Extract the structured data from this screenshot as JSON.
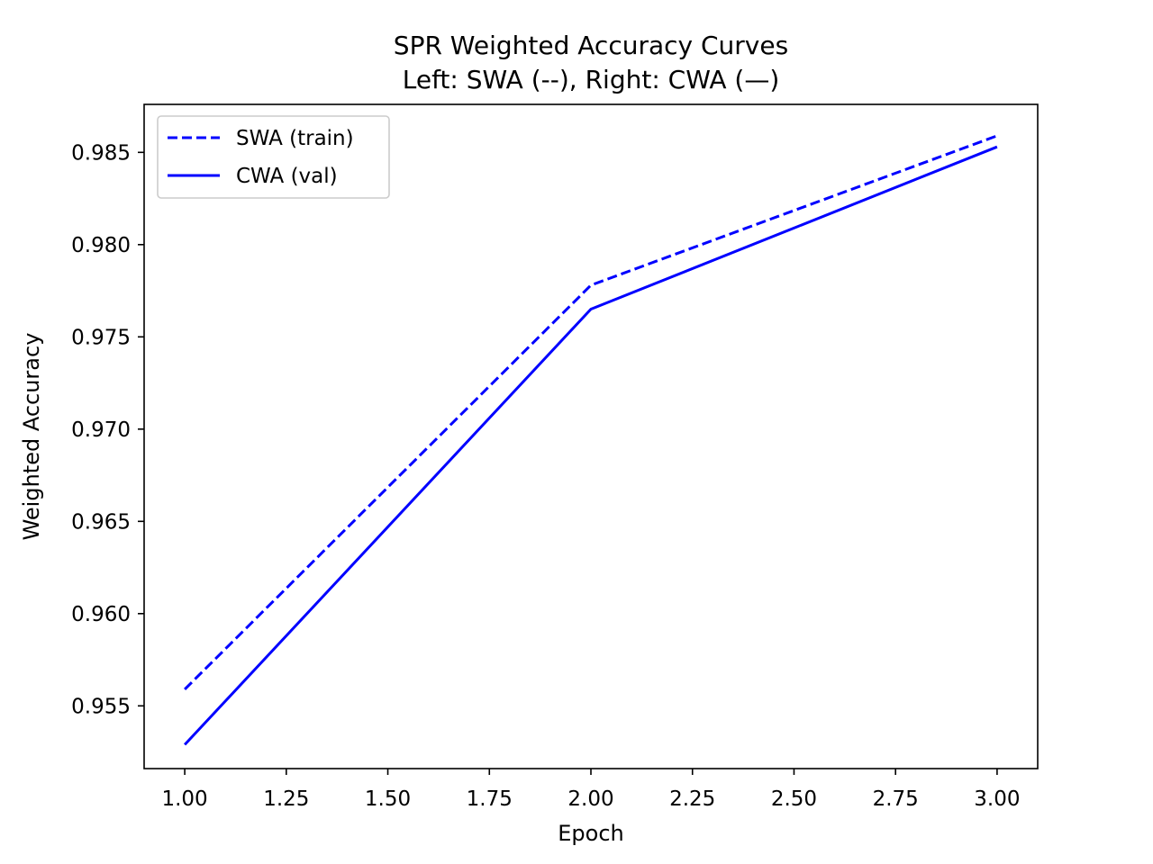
{
  "chart_data": {
    "type": "line",
    "title": "SPR Weighted Accuracy Curves",
    "subtitle": "Left: SWA (--), Right: CWA (—)",
    "xlabel": "Epoch",
    "ylabel": "Weighted Accuracy",
    "xlim": [
      0.9,
      3.1
    ],
    "ylim": [
      0.9516,
      0.9876
    ],
    "xticks": [
      1.0,
      1.25,
      1.5,
      1.75,
      2.0,
      2.25,
      2.5,
      2.75,
      3.0
    ],
    "xtick_labels": [
      "1.00",
      "1.25",
      "1.50",
      "1.75",
      "2.00",
      "2.25",
      "2.50",
      "2.75",
      "3.00"
    ],
    "yticks": [
      0.955,
      0.96,
      0.965,
      0.97,
      0.975,
      0.98,
      0.985
    ],
    "ytick_labels": [
      "0.955",
      "0.960",
      "0.965",
      "0.970",
      "0.975",
      "0.980",
      "0.985"
    ],
    "grid": false,
    "legend_position": "top-left",
    "series": [
      {
        "name": "SWA (train)",
        "x": [
          1,
          2,
          3
        ],
        "y": [
          0.9559,
          0.9778,
          0.9859
        ],
        "color": "#0000ff",
        "style": "dashed"
      },
      {
        "name": "CWA (val)",
        "x": [
          1,
          2,
          3
        ],
        "y": [
          0.9529,
          0.9765,
          0.9853
        ],
        "color": "#0000ff",
        "style": "solid"
      }
    ]
  }
}
